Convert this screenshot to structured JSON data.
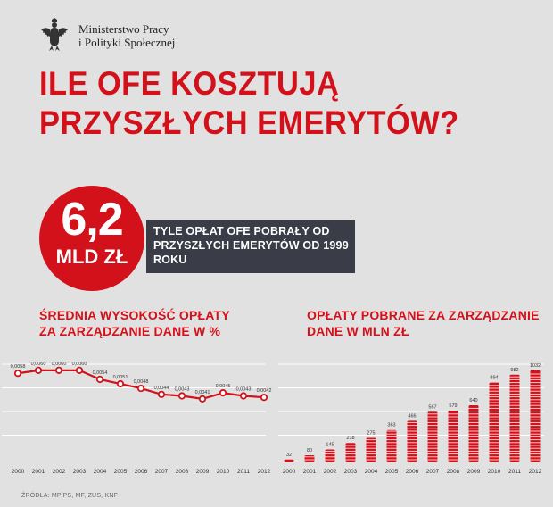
{
  "logo": {
    "line1": "Ministerstwo Pracy",
    "line2": "i Polityki Społecznej",
    "icon": "polish-eagle-emblem"
  },
  "headline": {
    "line1": "ILE OFE KOSZTUJĄ",
    "line2": "PRZYSZŁYCH EMERYTÓW?"
  },
  "stat": {
    "number": "6,2",
    "unit": "MLD ZŁ",
    "description": "TYLE OPŁAT OFE POBRAŁY OD PRZYSZŁYCH EMERYTÓW OD 1999 ROKU"
  },
  "colors": {
    "accent": "#d3111b",
    "dark_box": "#3a3d47",
    "background": "#e1e1e1",
    "grid": "#ffffff"
  },
  "source": "ŹRÓDŁA: MPiPS, MF, ZUS, KNF",
  "chart_data": [
    {
      "type": "line",
      "title": "ŚREDNIA WYSOKOŚĆ OPŁATY ZA ZARZĄDZANIE DANE W %",
      "x": [
        "2000",
        "2001",
        "2002",
        "2003",
        "2004",
        "2005",
        "2006",
        "2007",
        "2008",
        "2009",
        "2010",
        "2011",
        "2012"
      ],
      "values": [
        0.0058,
        0.006,
        0.006,
        0.006,
        0.0054,
        0.0051,
        0.0048,
        0.0044,
        0.0043,
        0.0041,
        0.0045,
        0.0043,
        0.0042
      ],
      "labels": [
        "0,0058",
        "0,0060",
        "0,0060",
        "0,0060",
        "0,0054",
        "0,0051",
        "0,0048",
        "0,0044",
        "0,0043",
        "0,0041",
        "0,0045",
        "0,0043",
        "0,0042"
      ],
      "ylim": [
        0,
        0.007
      ],
      "grid": true,
      "xlabel": "",
      "ylabel": ""
    },
    {
      "type": "bar",
      "title": "OPŁATY POBRANE ZA ZARZĄDZANIE DANE W MLN ZŁ",
      "categories": [
        "2000",
        "2001",
        "2002",
        "2003",
        "2004",
        "2005",
        "2006",
        "2007",
        "2008",
        "2009",
        "2010",
        "2011",
        "2012"
      ],
      "values": [
        32,
        80,
        145,
        218,
        275,
        363,
        466,
        567,
        579,
        640,
        894,
        982,
        1032
      ],
      "ylim": [
        0,
        1200
      ],
      "grid": true,
      "xlabel": "",
      "ylabel": ""
    }
  ]
}
